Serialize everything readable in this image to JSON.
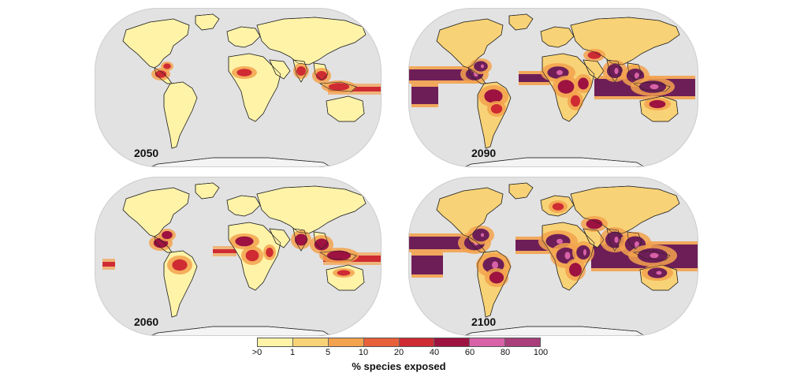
{
  "panels": [
    {
      "year": "2050",
      "intensity": 1
    },
    {
      "year": "2090",
      "intensity": 3
    },
    {
      "year": "2060",
      "intensity": 2
    },
    {
      "year": "2100",
      "intensity": 4
    }
  ],
  "legend": {
    "title": "% species exposed",
    "ticks": [
      ">0",
      "1",
      "5",
      "10",
      "20",
      "40",
      "60",
      "80",
      "100"
    ],
    "colors": [
      "#fff3a8",
      "#f8d276",
      "#f3a24e",
      "#e7603a",
      "#cf2b33",
      "#9d1240",
      "#d862a8",
      "#a83f7a",
      "#6e1e57"
    ]
  },
  "colors": {
    "ocean": "#e2e2e2",
    "land_base": "#fff3a8",
    "border": "#222222"
  }
}
